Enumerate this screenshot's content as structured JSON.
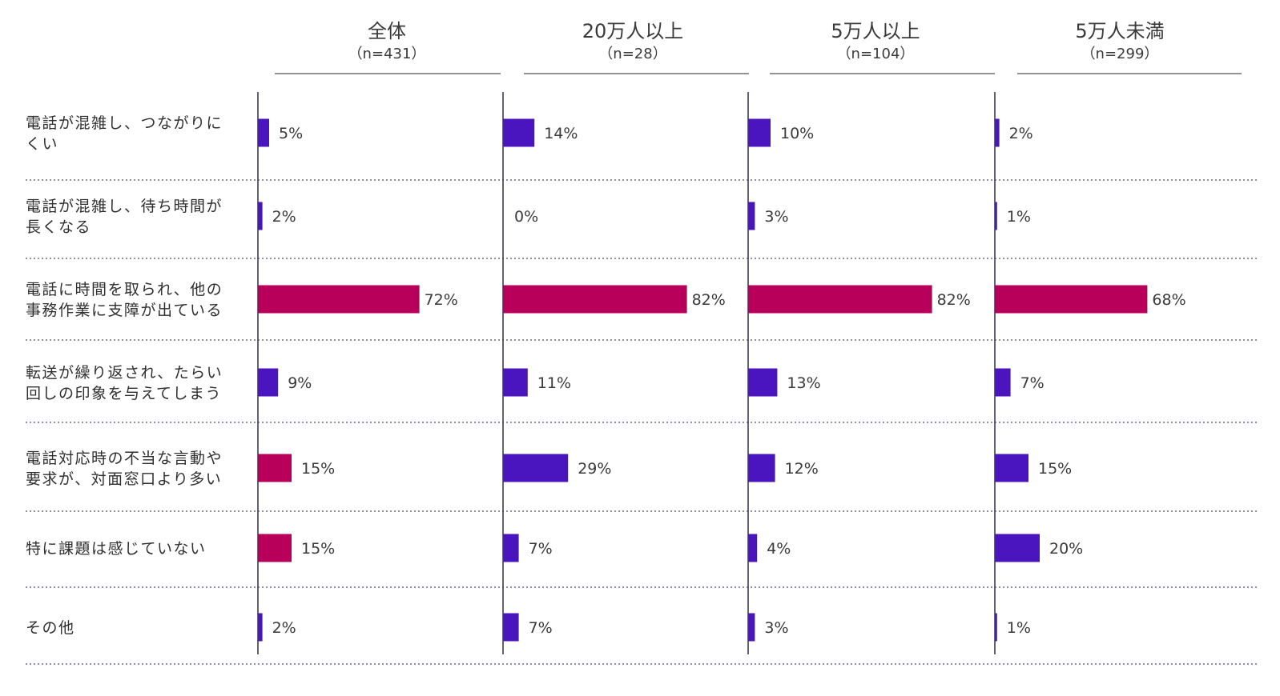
{
  "chart_data": {
    "type": "bar",
    "orientation": "horizontal",
    "colors": {
      "normal": "#4a14bf",
      "highlight": "#b8005a"
    },
    "categories": [
      [
        "電話が混雑し、つながりに",
        "くい"
      ],
      [
        "電話が混雑し、待ち時間が",
        "長くなる"
      ],
      [
        "電話に時間を取られ、他の",
        "事務作業に支障が出ている"
      ],
      [
        "転送が繰り返され、たらい",
        "回しの印象を与えてしまう"
      ],
      [
        "電話対応時の不当な言動や",
        "要求が、対面窓口より多い"
      ],
      [
        "特に課題は感じていない"
      ],
      [
        "その他"
      ]
    ],
    "series": [
      {
        "name": "全体",
        "n": "（n=431）",
        "values": [
          5,
          2,
          72,
          9,
          15,
          15,
          2
        ],
        "labels": [
          "5%",
          "2%",
          "72%",
          "9%",
          "15%",
          "15%",
          "2%"
        ],
        "highlight": [
          false,
          false,
          true,
          false,
          true,
          true,
          false
        ]
      },
      {
        "name": "20万人以上",
        "n": "（n=28）",
        "values": [
          14,
          0,
          82,
          11,
          29,
          7,
          7
        ],
        "labels": [
          "14%",
          "0%",
          "82%",
          "11%",
          "29%",
          "7%",
          "7%"
        ],
        "highlight": [
          false,
          false,
          true,
          false,
          false,
          false,
          false
        ]
      },
      {
        "name": "5万人以上",
        "n": "（n=104）",
        "values": [
          10,
          3,
          82,
          13,
          12,
          4,
          3
        ],
        "labels": [
          "10%",
          "3%",
          "82%",
          "13%",
          "12%",
          "4%",
          "3%"
        ],
        "highlight": [
          false,
          false,
          true,
          false,
          false,
          false,
          false
        ]
      },
      {
        "name": "5万人未満",
        "n": "（n=299）",
        "values": [
          2,
          1,
          68,
          7,
          15,
          20,
          1
        ],
        "labels": [
          "2%",
          "1%",
          "68%",
          "7%",
          "15%",
          "20%",
          "1%"
        ],
        "highlight": [
          false,
          false,
          true,
          false,
          false,
          false,
          false
        ]
      }
    ],
    "xlim": [
      0,
      100
    ],
    "grid": false,
    "legend": "none"
  }
}
